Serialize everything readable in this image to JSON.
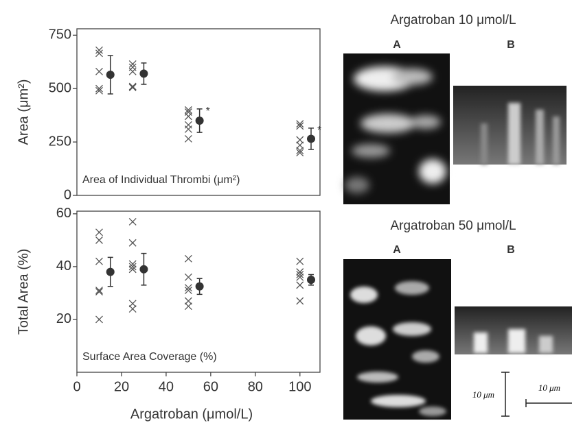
{
  "chart_data": [
    {
      "type": "scatter",
      "ylabel": "Area (μm²)",
      "annotation": "Area of Individual Thrombi (μm²)",
      "xlim": [
        0,
        109
      ],
      "ylim": [
        0,
        780
      ],
      "yticks": [
        0,
        250,
        500,
        750
      ],
      "individual": {
        "x": [
          10,
          10,
          10,
          10,
          10,
          25,
          25,
          25,
          25,
          25,
          50,
          50,
          50,
          50,
          50,
          50,
          100,
          100,
          100,
          100,
          100,
          100
        ],
        "y": [
          680,
          665,
          580,
          500,
          490,
          615,
          600,
          580,
          510,
          505,
          400,
          390,
          370,
          330,
          310,
          265,
          335,
          325,
          260,
          235,
          210,
          200
        ]
      },
      "mean": {
        "x": [
          15,
          30,
          55,
          105
        ],
        "y": [
          565,
          570,
          350,
          265
        ],
        "error": [
          90,
          50,
          55,
          50
        ],
        "labels": [
          null,
          null,
          "*",
          "*"
        ]
      }
    },
    {
      "type": "scatter",
      "ylabel": "Total Area (%)",
      "xlabel": "Argatroban (μmol/L)",
      "annotation": "Surface Area Coverage (%)",
      "xlim": [
        0,
        109
      ],
      "ylim": [
        0,
        61
      ],
      "yticks": [
        20,
        40,
        60
      ],
      "xticks": [
        0,
        20,
        40,
        60,
        80,
        100
      ],
      "individual": {
        "x": [
          10,
          10,
          10,
          10,
          10,
          10,
          25,
          25,
          25,
          25,
          25,
          25,
          25,
          50,
          50,
          50,
          50,
          50,
          50,
          100,
          100,
          100,
          100,
          100,
          100
        ],
        "y": [
          53,
          50,
          42,
          31,
          30.5,
          20,
          57,
          49,
          41,
          40,
          39,
          26,
          24,
          43,
          36,
          32,
          31,
          27,
          25,
          42,
          38,
          37,
          36,
          33,
          27
        ]
      },
      "mean": {
        "x": [
          15,
          30,
          55,
          105
        ],
        "y": [
          38,
          39,
          32.5,
          35
        ],
        "error": [
          5.5,
          6,
          3,
          2
        ]
      }
    }
  ],
  "images": {
    "top_title": "Argatroban 10 μmol/L",
    "bottom_title": "Argatroban 50 μmol/L",
    "top_a": "A",
    "top_b": "B",
    "bottom_a": "A",
    "bottom_b": "B",
    "scale_vertical": "10 μm",
    "scale_horizontal": "10 μm"
  }
}
